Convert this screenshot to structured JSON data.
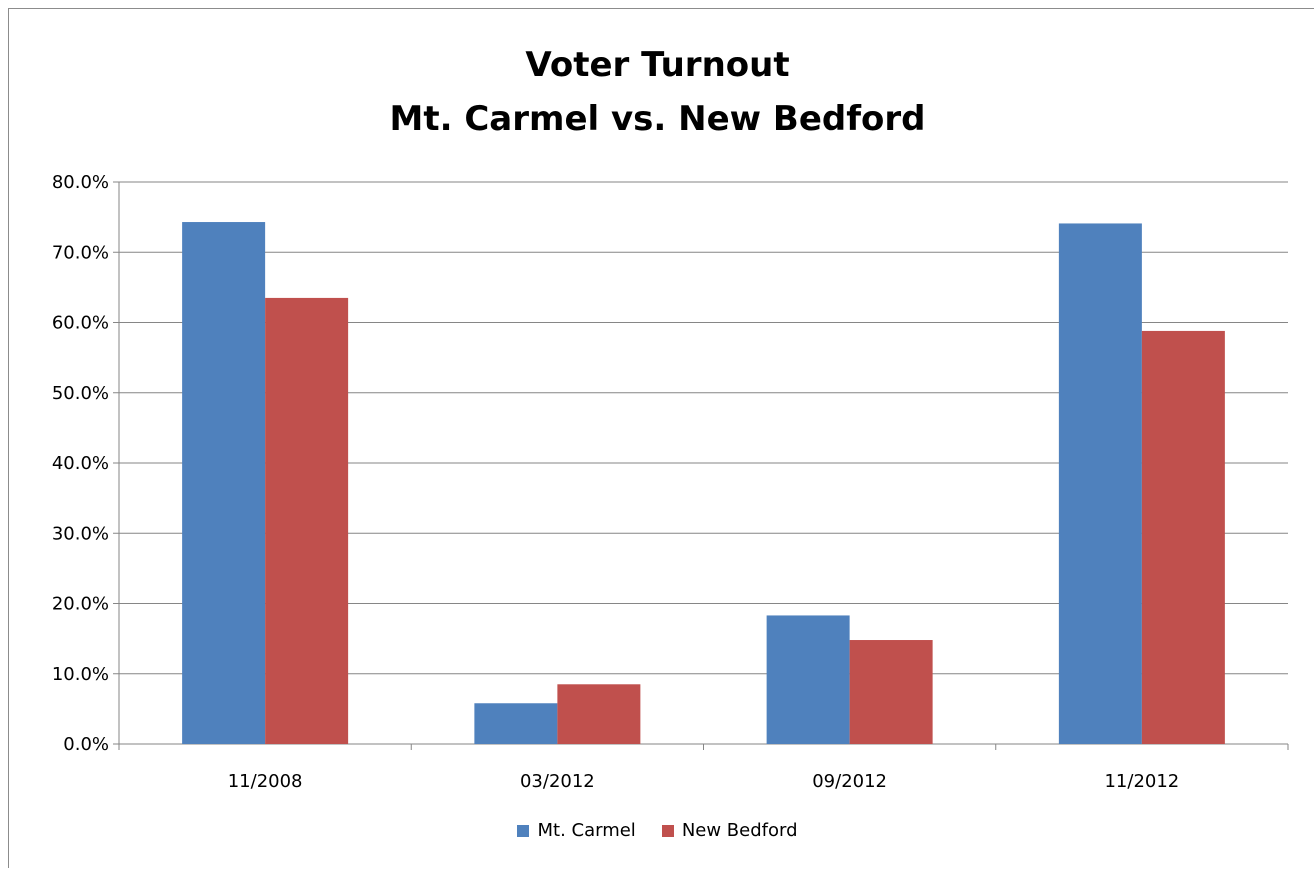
{
  "chart_data": {
    "type": "bar",
    "title": [
      "Voter Turnout",
      "Mt. Carmel vs. New Bedford"
    ],
    "categories": [
      "11/2008",
      "03/2012",
      "09/2012",
      "11/2012"
    ],
    "series": [
      {
        "name": "Mt. Carmel",
        "color": "#4f81bd",
        "values": [
          74.3,
          5.8,
          18.3,
          74.1
        ]
      },
      {
        "name": "New Bedford",
        "color": "#c0504d",
        "values": [
          63.5,
          8.5,
          14.8,
          58.8
        ]
      }
    ],
    "yticks": [
      "0.0%",
      "10.0%",
      "20.0%",
      "30.0%",
      "40.0%",
      "50.0%",
      "60.0%",
      "70.0%",
      "80.0%"
    ],
    "ylim": [
      0,
      80
    ],
    "xlabel": "",
    "ylabel": "",
    "grid": true,
    "legend_position": "bottom"
  }
}
